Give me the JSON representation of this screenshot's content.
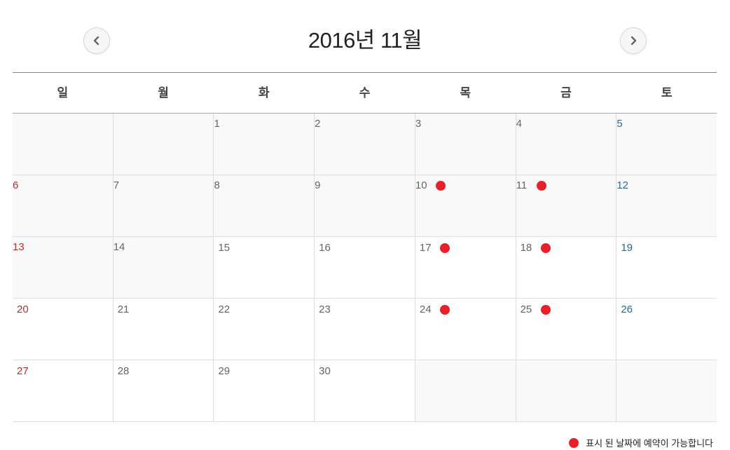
{
  "calendar": {
    "title": "2016년 11월",
    "weekdays": [
      "일",
      "월",
      "화",
      "수",
      "목",
      "금",
      "토"
    ],
    "weeks": [
      [
        null,
        null,
        "1",
        "2",
        "3",
        "4",
        "5"
      ],
      [
        "6",
        "7",
        "8",
        "9",
        "10",
        "11",
        "12"
      ],
      [
        "13",
        "14",
        "15",
        "16",
        "17",
        "18",
        "19"
      ],
      [
        "20",
        "21",
        "22",
        "23",
        "24",
        "25",
        "26"
      ],
      [
        "27",
        "28",
        "29",
        "30",
        null,
        null,
        null
      ]
    ],
    "available_days": [
      "10",
      "11",
      "17",
      "18",
      "24",
      "25"
    ],
    "past_days_through": "14"
  },
  "legend": {
    "text": "표시 된 날짜에 예약이 가능합니다"
  },
  "icons": {
    "prev": "chevron-left-icon",
    "next": "chevron-right-icon",
    "marker": "available-dot-icon"
  },
  "colors": {
    "available": "#e8202a",
    "sunday": "#b8312f",
    "saturday": "#2e6a99"
  }
}
